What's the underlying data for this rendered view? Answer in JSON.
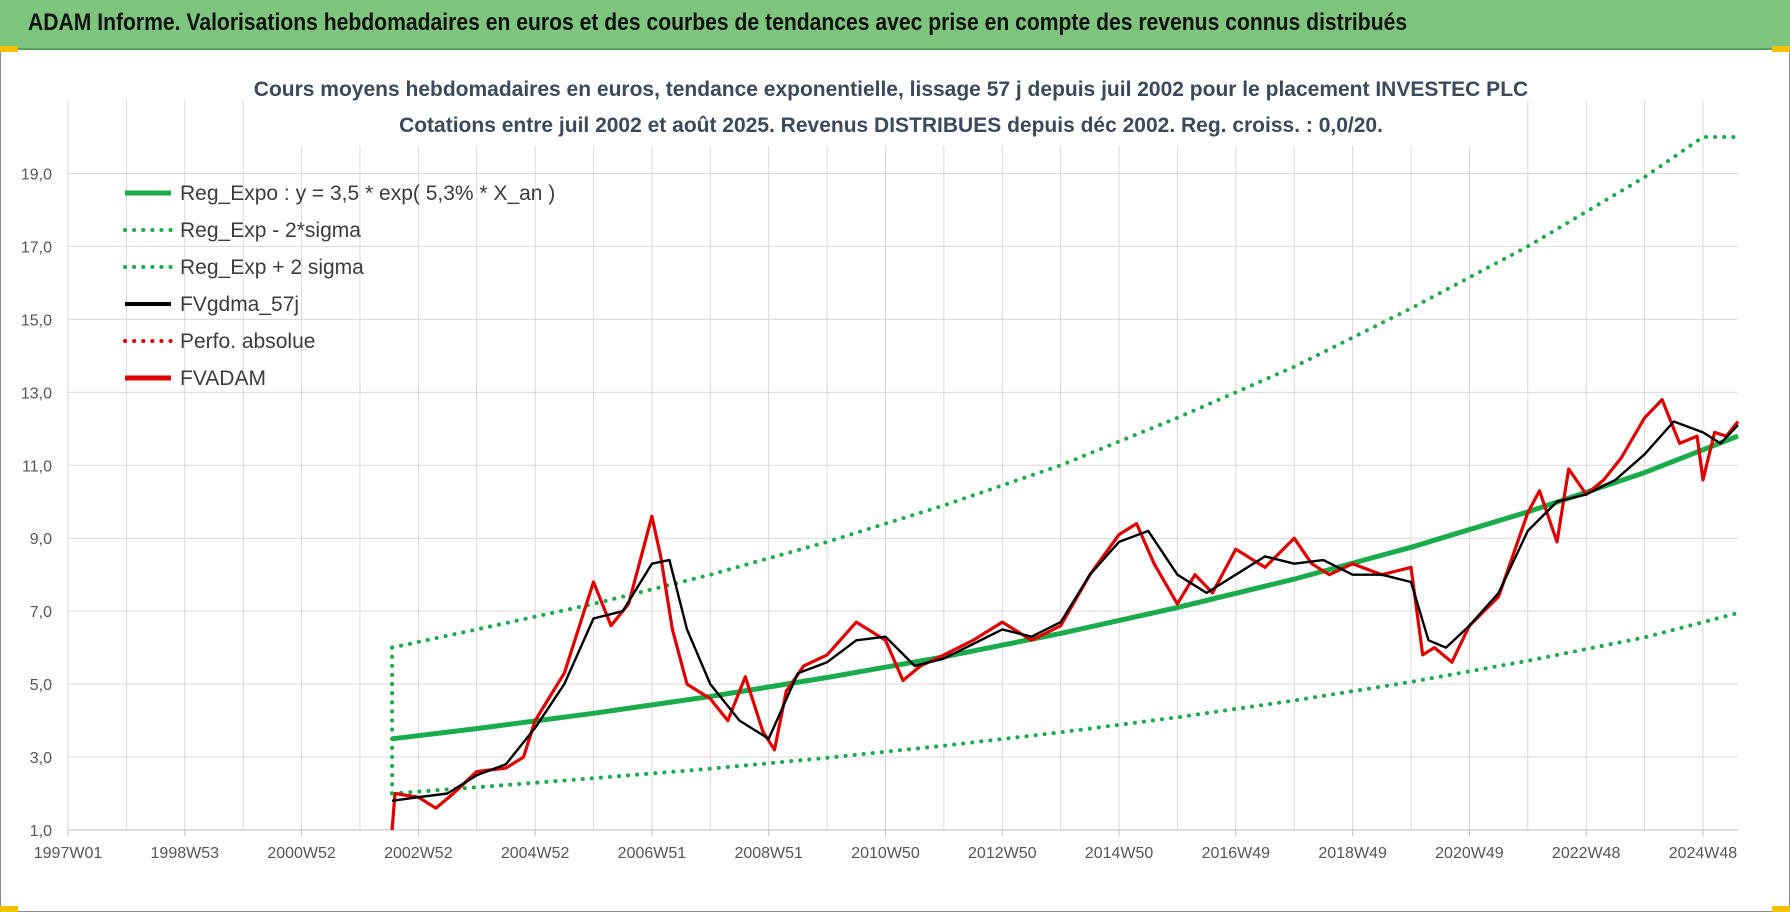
{
  "header": {
    "title": "ADAM Informe. Valorisations hebdomadaires en euros et des courbes de tendances avec prise en compte des revenus connus distribués"
  },
  "colors": {
    "banner": "#7dc47d",
    "reg_green": "#1aab4b",
    "black": "#000000",
    "red": "#e00000",
    "grid": "#d9d9d9"
  },
  "chart_data": {
    "type": "line",
    "title": "Cours moyens hebdomadaires en euros, tendance exponentielle, lissage 57 j depuis juil 2002 pour le placement INVESTEC PLC",
    "subtitle": "Cotations entre juil 2002 et août 2025. Revenus DISTRIBUES depuis déc 2002. Reg. croiss. : 0,0/20.",
    "xlabel": "",
    "ylabel": "",
    "xlim": [
      1997.0,
      2025.6
    ],
    "ylim": [
      1.0,
      20.0
    ],
    "y_ticks": [
      "1,0",
      "3,0",
      "5,0",
      "7,0",
      "9,0",
      "11,0",
      "13,0",
      "15,0",
      "17,0",
      "19,0"
    ],
    "y_tick_values": [
      1,
      3,
      5,
      7,
      9,
      11,
      13,
      15,
      17,
      19
    ],
    "x_ticks": [
      "1997W01",
      "1998W53",
      "2000W52",
      "2002W52",
      "2004W52",
      "2006W51",
      "2008W51",
      "2010W50",
      "2012W50",
      "2014W50",
      "2016W49",
      "2018W49",
      "2020W49",
      "2022W48",
      "2024W48"
    ],
    "x_tick_values": [
      1997.0,
      1999.0,
      2001.0,
      2003.0,
      2005.0,
      2007.0,
      2009.0,
      2011.0,
      2013.0,
      2015.0,
      2017.0,
      2019.0,
      2021.0,
      2023.0,
      2025.0
    ],
    "grid": true,
    "legend_position": "top-left",
    "series": [
      {
        "name": "Reg_Expo : y = 3,5 * exp( 5,3% *  X_an )",
        "style": "solid-thick",
        "color": "#1aab4b",
        "x": [
          2002.55,
          2004.0,
          2006.0,
          2008.0,
          2010.0,
          2012.0,
          2014.0,
          2016.0,
          2018.0,
          2020.0,
          2022.0,
          2024.0,
          2025.6
        ],
        "y": [
          3.5,
          3.78,
          4.2,
          4.66,
          5.18,
          5.75,
          6.39,
          7.1,
          7.88,
          8.75,
          9.72,
          10.8,
          11.8
        ]
      },
      {
        "name": "Reg_Exp - 2*sigma",
        "style": "dotted",
        "color": "#1aab4b",
        "x": [
          2002.55,
          2004.0,
          2006.0,
          2008.0,
          2010.0,
          2012.0,
          2014.0,
          2016.0,
          2018.0,
          2020.0,
          2022.0,
          2024.0,
          2025.6
        ],
        "y": [
          2.0,
          2.17,
          2.42,
          2.68,
          2.98,
          3.31,
          3.68,
          4.09,
          4.55,
          5.06,
          5.64,
          6.28,
          6.95
        ]
      },
      {
        "name": "Reg_Exp + 2 sigma",
        "style": "dotted",
        "color": "#1aab4b",
        "x": [
          2002.55,
          2004.0,
          2006.0,
          2008.0,
          2010.0,
          2012.0,
          2014.0,
          2016.0,
          2018.0,
          2020.0,
          2022.0,
          2024.0,
          2025.0,
          2025.6
        ],
        "y": [
          6.0,
          6.5,
          7.2,
          8.0,
          8.9,
          9.9,
          11.0,
          12.3,
          13.7,
          15.3,
          17.0,
          18.9,
          20.0,
          20.0
        ]
      },
      {
        "name": "FVgdma_57j",
        "style": "solid",
        "color": "#000000",
        "x": [
          2002.55,
          2003.0,
          2003.5,
          2004.0,
          2004.5,
          2005.0,
          2005.5,
          2006.0,
          2006.5,
          2007.0,
          2007.3,
          2007.6,
          2008.0,
          2008.5,
          2009.0,
          2009.5,
          2010.0,
          2010.5,
          2011.0,
          2011.5,
          2012.0,
          2012.5,
          2013.0,
          2013.5,
          2014.0,
          2014.5,
          2015.0,
          2015.5,
          2016.0,
          2016.5,
          2017.0,
          2017.5,
          2018.0,
          2018.5,
          2019.0,
          2019.5,
          2020.0,
          2020.3,
          2020.6,
          2021.0,
          2021.5,
          2022.0,
          2022.5,
          2023.0,
          2023.5,
          2024.0,
          2024.5,
          2025.0,
          2025.3,
          2025.6
        ],
        "y": [
          1.8,
          1.9,
          2.0,
          2.5,
          2.8,
          3.8,
          5.0,
          6.8,
          7.0,
          8.3,
          8.4,
          6.5,
          5.0,
          4.0,
          3.5,
          5.3,
          5.6,
          6.2,
          6.3,
          5.5,
          5.7,
          6.1,
          6.5,
          6.3,
          6.7,
          8.0,
          8.9,
          9.2,
          8.0,
          7.5,
          8.0,
          8.5,
          8.3,
          8.4,
          8.0,
          8.0,
          7.8,
          6.2,
          6.0,
          6.6,
          7.5,
          9.2,
          10.0,
          10.2,
          10.6,
          11.3,
          12.2,
          11.9,
          11.6,
          12.1
        ]
      },
      {
        "name": "Perfo. absolue",
        "style": "dotted",
        "color": "#e00000",
        "x": [],
        "y": []
      },
      {
        "name": "FVADAM",
        "style": "solid-thick",
        "color": "#e00000",
        "x": [
          2002.55,
          2002.6,
          2003.0,
          2003.3,
          2003.6,
          2004.0,
          2004.5,
          2004.8,
          2005.0,
          2005.5,
          2006.0,
          2006.3,
          2006.6,
          2007.0,
          2007.15,
          2007.35,
          2007.6,
          2008.0,
          2008.3,
          2008.6,
          2008.9,
          2009.1,
          2009.3,
          2009.6,
          2010.0,
          2010.5,
          2011.0,
          2011.3,
          2011.6,
          2012.0,
          2012.5,
          2013.0,
          2013.5,
          2014.0,
          2014.5,
          2015.0,
          2015.3,
          2015.6,
          2016.0,
          2016.3,
          2016.6,
          2017.0,
          2017.5,
          2018.0,
          2018.3,
          2018.6,
          2019.0,
          2019.5,
          2020.0,
          2020.2,
          2020.4,
          2020.7,
          2021.0,
          2021.5,
          2022.0,
          2022.2,
          2022.5,
          2022.7,
          2023.0,
          2023.3,
          2023.6,
          2024.0,
          2024.3,
          2024.6,
          2024.9,
          2025.0,
          2025.2,
          2025.4,
          2025.6
        ],
        "y": [
          1.0,
          2.0,
          1.9,
          1.6,
          2.0,
          2.6,
          2.7,
          3.0,
          4.0,
          5.3,
          7.8,
          6.6,
          7.2,
          9.6,
          8.5,
          6.5,
          5.0,
          4.6,
          4.0,
          5.2,
          3.7,
          3.2,
          4.8,
          5.5,
          5.8,
          6.7,
          6.2,
          5.1,
          5.5,
          5.8,
          6.2,
          6.7,
          6.2,
          6.6,
          8.0,
          9.1,
          9.4,
          8.3,
          7.2,
          8.0,
          7.5,
          8.7,
          8.2,
          9.0,
          8.3,
          8.0,
          8.3,
          8.0,
          8.2,
          5.8,
          6.0,
          5.6,
          6.6,
          7.4,
          9.7,
          10.3,
          8.9,
          10.9,
          10.2,
          10.6,
          11.2,
          12.3,
          12.8,
          11.6,
          11.8,
          10.6,
          11.9,
          11.8,
          12.2
        ]
      }
    ]
  }
}
